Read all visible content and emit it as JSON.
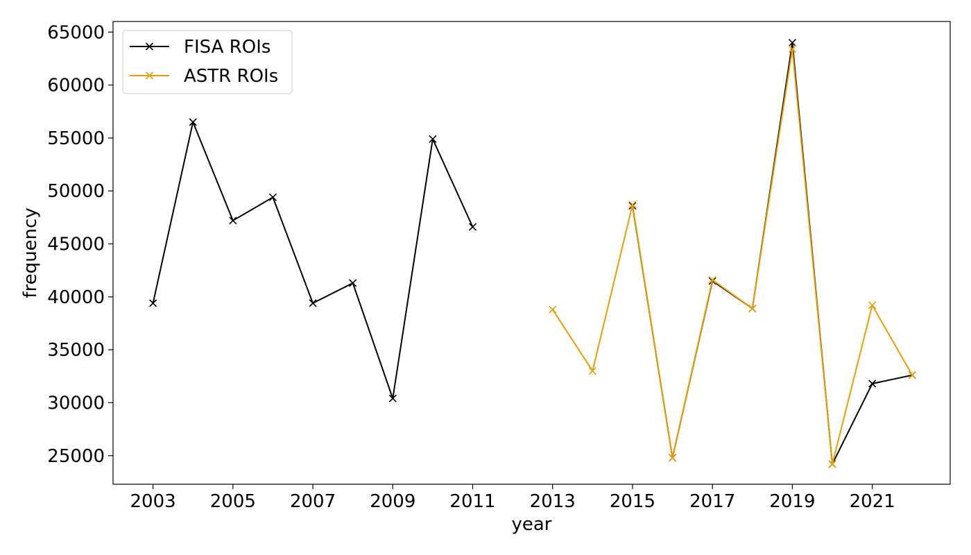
{
  "chart_data": {
    "type": "line",
    "xlabel": "year",
    "ylabel": "frequency",
    "xlim": [
      2002,
      2022.95
    ],
    "ylim": [
      22300,
      66000
    ],
    "x_ticks": [
      2003,
      2005,
      2007,
      2009,
      2011,
      2013,
      2015,
      2017,
      2019,
      2021
    ],
    "y_ticks": [
      25000,
      30000,
      35000,
      40000,
      45000,
      50000,
      55000,
      60000,
      65000
    ],
    "grid": false,
    "legend_position": "top-left",
    "marker": "x",
    "series": [
      {
        "name": "FISA ROIs",
        "color": "#000000",
        "points": [
          [
            2003,
            39400
          ],
          [
            2004,
            56500
          ],
          [
            2005,
            47200
          ],
          [
            2006,
            49400
          ],
          [
            2007,
            39400
          ],
          [
            2008,
            41300
          ],
          [
            2009,
            30400
          ],
          [
            2010,
            54900
          ],
          [
            2011,
            46600
          ],
          [
            2012,
            null
          ],
          [
            2015,
            48600
          ],
          [
            2016,
            24800
          ],
          [
            2017,
            41500
          ],
          [
            2018,
            38900
          ],
          [
            2019,
            64000
          ],
          [
            2020,
            24200
          ],
          [
            2021,
            31800
          ],
          [
            2022,
            32600
          ]
        ]
      },
      {
        "name": "ASTR ROIs",
        "color": "#E69F00",
        "points": [
          [
            2013,
            38800
          ],
          [
            2014,
            33000
          ],
          [
            2015,
            48700
          ],
          [
            2016,
            24800
          ],
          [
            2017,
            41600
          ],
          [
            2018,
            38900
          ],
          [
            2019,
            63400
          ],
          [
            2020,
            24200
          ],
          [
            2021,
            39200
          ],
          [
            2022,
            32600
          ]
        ]
      }
    ]
  }
}
